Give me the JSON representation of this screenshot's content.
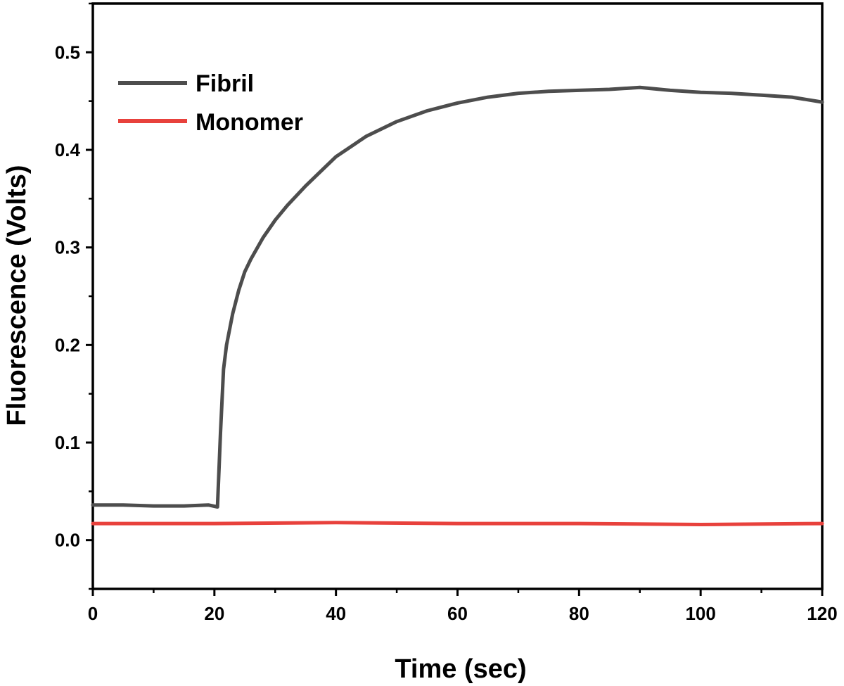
{
  "chart_data": {
    "type": "line",
    "xlabel": "Time (sec)",
    "ylabel": "Fluorescence (Volts)",
    "xlim": [
      0,
      120
    ],
    "ylim": [
      -0.05,
      0.55
    ],
    "x_ticks": [
      0,
      20,
      40,
      60,
      80,
      100,
      120
    ],
    "x_tick_labels": [
      "0",
      "20",
      "40",
      "60",
      "80",
      "100",
      "120"
    ],
    "y_ticks": [
      0.0,
      0.1,
      0.2,
      0.3,
      0.4,
      0.5
    ],
    "y_tick_labels": [
      "0.0",
      "0.1",
      "0.2",
      "0.3",
      "0.4",
      "0.5"
    ],
    "grid": false,
    "legend_position": "top-left",
    "series": [
      {
        "name": "Fibril",
        "color": "#4d4d4d",
        "x": [
          0,
          5,
          10,
          15,
          19,
          20.5,
          21,
          21.5,
          22,
          23,
          24,
          25,
          26,
          28,
          30,
          32,
          35,
          38,
          40,
          45,
          50,
          55,
          60,
          65,
          70,
          75,
          80,
          85,
          90,
          95,
          100,
          105,
          110,
          115,
          120
        ],
        "y": [
          0.036,
          0.036,
          0.035,
          0.035,
          0.036,
          0.034,
          0.11,
          0.175,
          0.2,
          0.232,
          0.256,
          0.275,
          0.288,
          0.31,
          0.328,
          0.343,
          0.363,
          0.381,
          0.393,
          0.414,
          0.429,
          0.44,
          0.448,
          0.454,
          0.458,
          0.46,
          0.461,
          0.462,
          0.464,
          0.461,
          0.459,
          0.458,
          0.456,
          0.454,
          0.449
        ]
      },
      {
        "name": "Monomer",
        "color": "#e8413c",
        "x": [
          0,
          20,
          40,
          60,
          80,
          100,
          120
        ],
        "y": [
          0.017,
          0.017,
          0.018,
          0.017,
          0.017,
          0.016,
          0.017
        ]
      }
    ]
  }
}
